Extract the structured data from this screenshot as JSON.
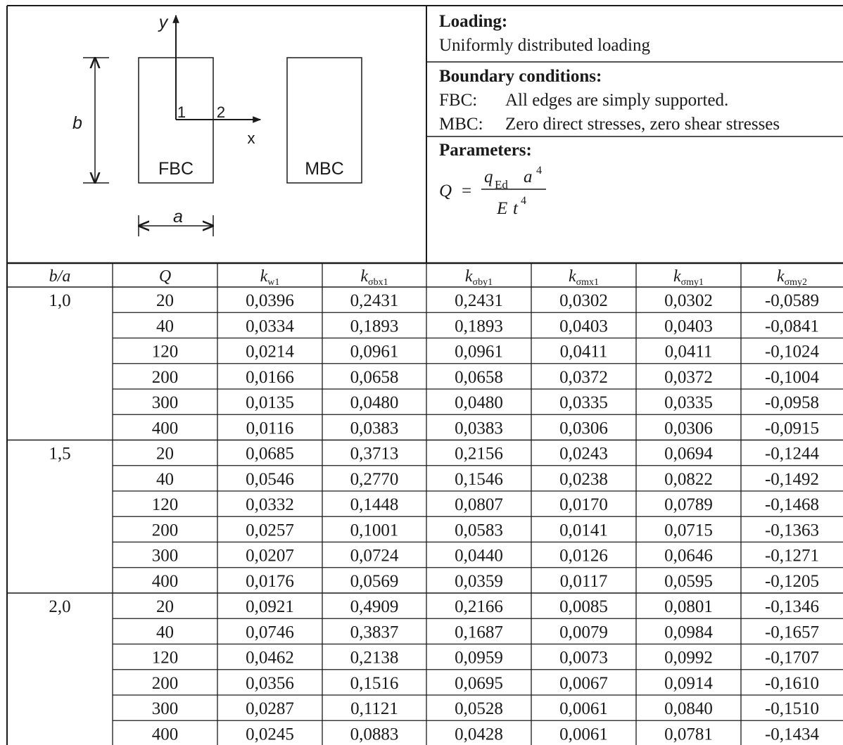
{
  "figure": {
    "axis_y": "y",
    "axis_x": "x",
    "dim_b": "b",
    "dim_a": "a",
    "point_1": "1",
    "point_2": "2",
    "fbc_label": "FBC",
    "mbc_label": "MBC"
  },
  "loading": {
    "heading": "Loading:",
    "text": "Uniformly distributed loading"
  },
  "boundary": {
    "heading": "Boundary conditions:",
    "fbc_key": "FBC:",
    "fbc_text": "All edges are simply supported.",
    "mbc_key": "MBC:",
    "mbc_text": "Zero direct stresses, zero shear stresses"
  },
  "parameters": {
    "heading": "Parameters:",
    "formula": {
      "lhs": "Q",
      "equals": "=",
      "num_q": "q",
      "num_q_sub": "Ed",
      "num_a": "a",
      "num_a_exp": "4",
      "den_e": "E",
      "den_t": "t",
      "den_t_exp": "4"
    }
  },
  "table": {
    "columns": [
      {
        "main": "b/a",
        "sub": ""
      },
      {
        "main": "Q",
        "sub": ""
      },
      {
        "main": "k",
        "sub": "w1"
      },
      {
        "main": "k",
        "sub": "σbx1"
      },
      {
        "main": "k",
        "sub": "σby1"
      },
      {
        "main": "k",
        "sub": "σmx1"
      },
      {
        "main": "k",
        "sub": "σmy1"
      },
      {
        "main": "k",
        "sub": "σmy2"
      }
    ],
    "rows": [
      [
        "1,0",
        "20",
        "0,0396",
        "0,2431",
        "0,2431",
        "0,0302",
        "0,0302",
        "-0,0589"
      ],
      [
        "",
        "40",
        "0,0334",
        "0,1893",
        "0,1893",
        "0,0403",
        "0,0403",
        "-0,0841"
      ],
      [
        "",
        "120",
        "0,0214",
        "0,0961",
        "0,0961",
        "0,0411",
        "0,0411",
        "-0,1024"
      ],
      [
        "",
        "200",
        "0,0166",
        "0,0658",
        "0,0658",
        "0,0372",
        "0,0372",
        "-0,1004"
      ],
      [
        "",
        "300",
        "0,0135",
        "0,0480",
        "0,0480",
        "0,0335",
        "0,0335",
        "-0,0958"
      ],
      [
        "",
        "400",
        "0,0116",
        "0,0383",
        "0,0383",
        "0,0306",
        "0,0306",
        "-0,0915"
      ],
      [
        "1,5",
        "20",
        "0,0685",
        "0,3713",
        "0,2156",
        "0,0243",
        "0,0694",
        "-0,1244"
      ],
      [
        "",
        "40",
        "0,0546",
        "0,2770",
        "0,1546",
        "0,0238",
        "0,0822",
        "-0,1492"
      ],
      [
        "",
        "120",
        "0,0332",
        "0,1448",
        "0,0807",
        "0,0170",
        "0,0789",
        "-0,1468"
      ],
      [
        "",
        "200",
        "0,0257",
        "0,1001",
        "0,0583",
        "0,0141",
        "0,0715",
        "-0,1363"
      ],
      [
        "",
        "300",
        "0,0207",
        "0,0724",
        "0,0440",
        "0,0126",
        "0,0646",
        "-0,1271"
      ],
      [
        "",
        "400",
        "0,0176",
        "0,0569",
        "0,0359",
        "0,0117",
        "0,0595",
        "-0,1205"
      ],
      [
        "2,0",
        "20",
        "0,0921",
        "0,4909",
        "0,2166",
        "0,0085",
        "0,0801",
        "-0,1346"
      ],
      [
        "",
        "40",
        "0,0746",
        "0,3837",
        "0,1687",
        "0,0079",
        "0,0984",
        "-0,1657"
      ],
      [
        "",
        "120",
        "0,0462",
        "0,2138",
        "0,0959",
        "0,0073",
        "0,0992",
        "-0,1707"
      ],
      [
        "",
        "200",
        "0,0356",
        "0,1516",
        "0,0695",
        "0,0067",
        "0,0914",
        "-0,1610"
      ],
      [
        "",
        "300",
        "0,0287",
        "0,1121",
        "0,0528",
        "0,0061",
        "0,0840",
        "-0,1510"
      ],
      [
        "",
        "400",
        "0,0245",
        "0,0883",
        "0,0428",
        "0,0061",
        "0,0781",
        "-0,1434"
      ]
    ]
  }
}
